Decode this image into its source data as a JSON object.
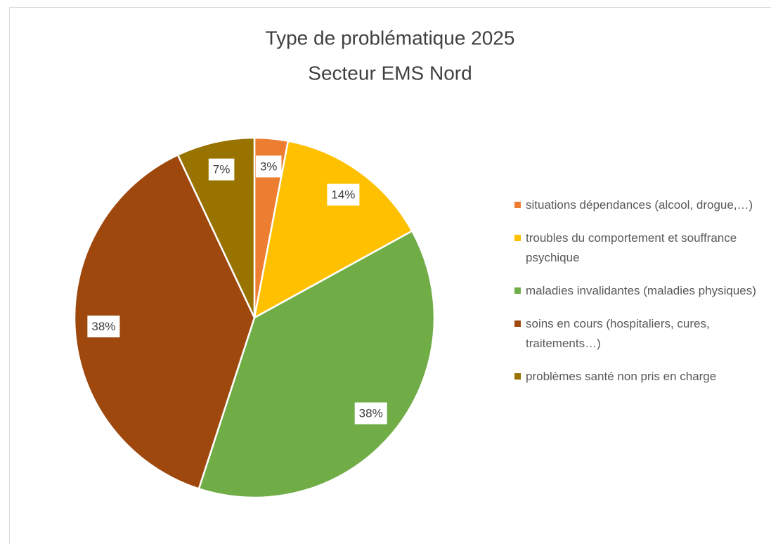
{
  "chart_data": {
    "type": "pie",
    "title": "Type de problématique 2025",
    "subtitle": "Secteur EMS Nord",
    "categories": [
      "situations dépendances (alcool, drogue,…)",
      "troubles du comportement et souffrance psychique",
      "maladies invalidantes (maladies physiques)",
      "soins en cours (hospitaliers, cures, traitements…)",
      "problèmes santé non pris en charge"
    ],
    "values": [
      3,
      14,
      38,
      38,
      7
    ],
    "value_labels": [
      "3%",
      "14%",
      "38%",
      "38%",
      "7%"
    ],
    "colors": [
      "#ED7D31",
      "#FFC000",
      "#70AD47",
      "#9E480E",
      "#997300"
    ],
    "legend": "right"
  }
}
